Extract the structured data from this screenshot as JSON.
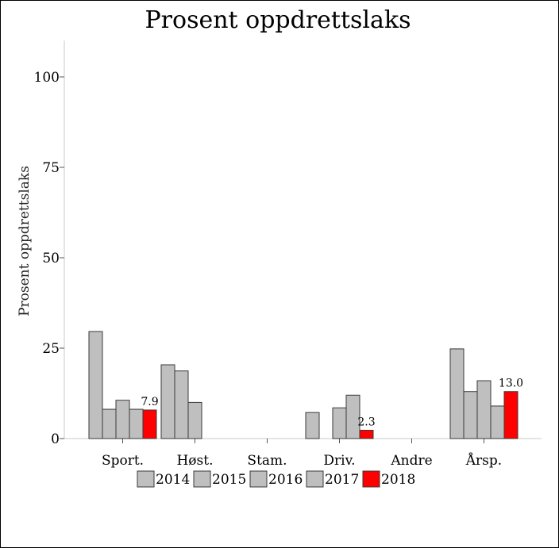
{
  "chart_data": {
    "type": "bar",
    "title": "Prosent oppdrettslaks",
    "xlabel": "",
    "ylabel": "Prosent oppdrettslaks",
    "ylim": [
      0,
      110
    ],
    "yticks": [
      0,
      25,
      50,
      75,
      100
    ],
    "grid": false,
    "legend_position": "bottom",
    "categories": [
      "Sport.",
      "Høst.",
      "Stam.",
      "Driv.",
      "Andre",
      "Årsp."
    ],
    "series": [
      {
        "name": "2014",
        "color": "#bfbfbf",
        "values": [
          29.6,
          20.4,
          null,
          7.2,
          null,
          24.8
        ]
      },
      {
        "name": "2015",
        "color": "#bfbfbf",
        "values": [
          8.1,
          18.7,
          null,
          null,
          null,
          13.0
        ]
      },
      {
        "name": "2016",
        "color": "#bfbfbf",
        "values": [
          10.6,
          10.0,
          null,
          8.5,
          null,
          16.0
        ]
      },
      {
        "name": "2017",
        "color": "#bfbfbf",
        "values": [
          8.1,
          null,
          null,
          12.0,
          null,
          9.0
        ]
      },
      {
        "name": "2018",
        "color": "#ff0000",
        "values": [
          7.9,
          null,
          null,
          2.3,
          null,
          13.0
        ]
      }
    ],
    "data_labels": [
      {
        "category": "Sport.",
        "series": "2018",
        "text": "7.9"
      },
      {
        "category": "Driv.",
        "series": "2018",
        "text": "2.3"
      },
      {
        "category": "Årsp.",
        "series": "2018",
        "text": "13.0"
      }
    ]
  }
}
